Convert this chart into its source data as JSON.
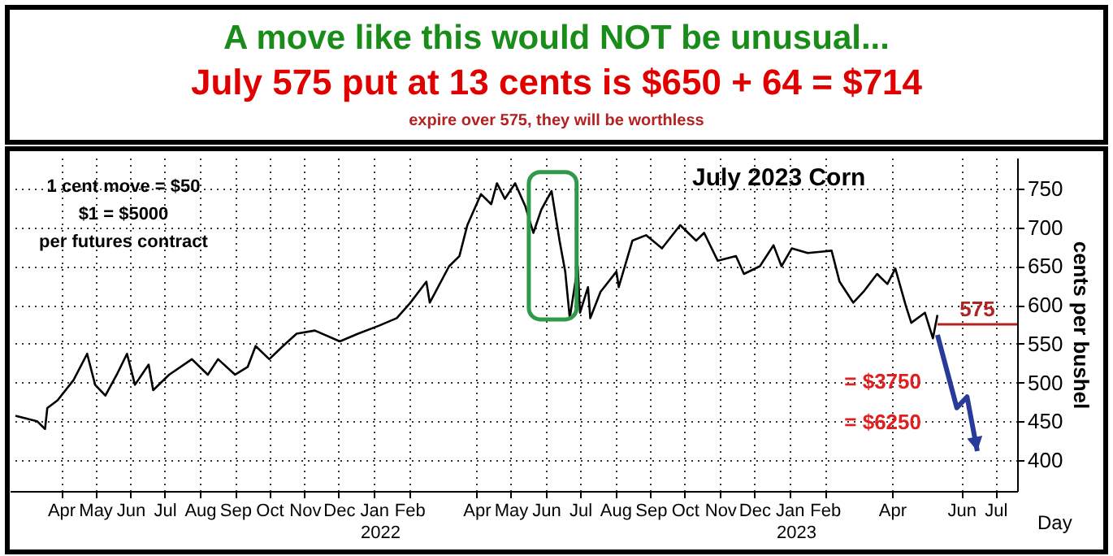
{
  "chart_data": {
    "type": "line",
    "title": "A move like this would NOT be unusual...",
    "subtitle": "July 575 put at 13 cents is $650 + 64 = $714",
    "xlabel": "Day",
    "ylabel": "cents per bushel",
    "annotations": [
      "expire over 575, they will be worthless",
      "July 2023 Corn",
      "1 cent move = $50",
      "$1 = $5000",
      "per futures contract",
      "= $3750",
      "= $6250",
      "2022",
      "2023"
    ],
    "x": [
      "2021-03-06",
      "2021-03-25",
      "2021-04-01",
      "2021-04-03",
      "2021-04-12",
      "2021-04-26",
      "2021-05-08",
      "2021-05-15",
      "2021-05-24",
      "2021-06-03",
      "2021-06-12",
      "2021-06-19",
      "2021-07-01",
      "2021-07-05",
      "2021-07-19",
      "2021-08-08",
      "2021-08-22",
      "2021-08-31",
      "2021-09-15",
      "2021-09-26",
      "2021-10-03",
      "2021-10-15",
      "2021-10-27",
      "2021-11-08",
      "2021-11-24",
      "2021-12-16",
      "2022-01-01",
      "2022-01-19",
      "2022-02-04",
      "2022-02-16",
      "2022-03-02",
      "2022-03-05",
      "2022-03-22",
      "2022-03-31",
      "2022-04-07",
      "2022-04-19",
      "2022-04-28",
      "2022-05-03",
      "2022-05-10",
      "2022-05-19",
      "2022-05-28",
      "2022-06-04",
      "2022-06-11",
      "2022-06-20",
      "2022-06-27",
      "2022-07-02",
      "2022-07-06",
      "2022-07-13",
      "2022-07-15",
      "2022-07-22",
      "2022-07-24",
      "2022-08-02",
      "2022-08-16",
      "2022-08-18",
      "2022-08-30",
      "2022-09-11",
      "2022-09-25",
      "2022-10-11",
      "2022-10-25",
      "2022-11-01",
      "2022-11-13",
      "2022-11-29",
      "2022-12-06",
      "2022-12-20",
      "2023-01-01",
      "2023-01-08",
      "2023-01-17",
      "2023-01-31",
      "2023-02-21",
      "2023-02-28",
      "2023-03-12",
      "2023-03-21",
      "2023-04-02",
      "2023-04-11",
      "2023-04-18",
      "2023-04-27",
      "2023-05-02",
      "2023-05-14",
      "2023-05-21",
      "2023-05-25"
    ],
    "series": [
      {
        "color": "#000000",
        "values": [
          457,
          450,
          440,
          467,
          477,
          503,
          537,
          497,
          483,
          510,
          537,
          497,
          523,
          490,
          510,
          530,
          510,
          530,
          510,
          520,
          547,
          530,
          547,
          563,
          567,
          553,
          563,
          573,
          583,
          603,
          630,
          603,
          650,
          663,
          703,
          743,
          730,
          757,
          737,
          757,
          727,
          693,
          723,
          747,
          683,
          643,
          583,
          650,
          590,
          623,
          583,
          617,
          643,
          623,
          683,
          690,
          673,
          703,
          683,
          693,
          657,
          663,
          640,
          650,
          677,
          650,
          673,
          667,
          670,
          630,
          603,
          617,
          640,
          627,
          647,
          600,
          577,
          590,
          557,
          587
        ]
      }
    ],
    "xlim": [
      "2021-03-01",
      "2023-08-03"
    ],
    "xticks": [
      {
        "value": "2021-04-15",
        "label": "Apr"
      },
      {
        "value": "2021-05-15",
        "label": "May"
      },
      {
        "value": "2021-06-15",
        "label": "Jun"
      },
      {
        "value": "2021-07-15",
        "label": "Jul"
      },
      {
        "value": "2021-08-15",
        "label": "Aug"
      },
      {
        "value": "2021-09-15",
        "label": "Sep"
      },
      {
        "value": "2021-10-15",
        "label": "Oct"
      },
      {
        "value": "2021-11-15",
        "label": "Nov"
      },
      {
        "value": "2021-12-15",
        "label": "Dec"
      },
      {
        "value": "2022-01-15",
        "label": "Jan"
      },
      {
        "value": "2022-02-15",
        "label": "Feb"
      },
      {
        "value": "2022-04-15",
        "label": "Apr"
      },
      {
        "value": "2022-05-15",
        "label": "May"
      },
      {
        "value": "2022-06-15",
        "label": "Jun"
      },
      {
        "value": "2022-07-15",
        "label": "Jul"
      },
      {
        "value": "2022-08-15",
        "label": "Aug"
      },
      {
        "value": "2022-09-15",
        "label": "Sep"
      },
      {
        "value": "2022-10-15",
        "label": "Oct"
      },
      {
        "value": "2022-11-15",
        "label": "Nov"
      },
      {
        "value": "2022-12-15",
        "label": "Dec"
      },
      {
        "value": "2023-01-15",
        "label": "Jan"
      },
      {
        "value": "2023-02-15",
        "label": "Feb"
      },
      {
        "value": "2023-04-15",
        "label": "Apr"
      },
      {
        "value": "2023-06-15",
        "label": "Jun"
      },
      {
        "value": "2023-07-15",
        "label": "Jul"
      }
    ],
    "ylim": [
      360,
      790
    ],
    "yticks": [
      400,
      450,
      500,
      550,
      600,
      650,
      700,
      750
    ],
    "ref_lines": [
      {
        "axis": "y",
        "value": 575,
        "label": "575",
        "color": "#b22222",
        "line_style": "solid"
      }
    ],
    "grid": true,
    "line_style": "solid",
    "marker": "none"
  }
}
